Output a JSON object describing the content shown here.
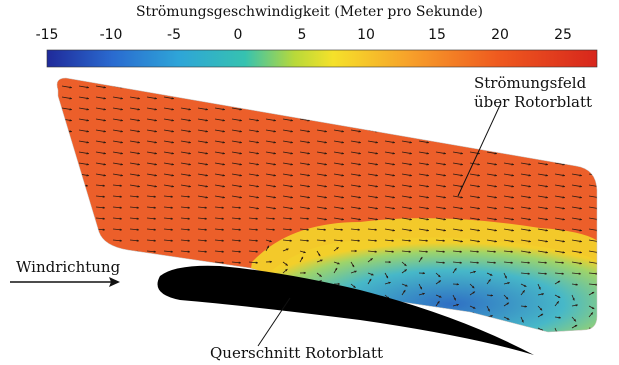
{
  "colorbar": {
    "title": "Strömungsgeschwindigkeit (Meter pro Sekunde)",
    "ticks": [
      "-15",
      "-10",
      "-5",
      "0",
      "5",
      "10",
      "15",
      "20",
      "25"
    ],
    "range": [
      -15,
      27
    ],
    "colors": [
      "#1f2a9a",
      "#2a6bd0",
      "#2ea5d8",
      "#36c2b0",
      "#b8d93a",
      "#f5e12a",
      "#f7a02a",
      "#ef5a1f",
      "#d7261c"
    ]
  },
  "labels": {
    "field": "Strömungsfeld über Rotorblatt",
    "wind": "Windrichtung",
    "cross_section": "Querschnitt Rotorblatt"
  },
  "field_colors": {
    "main": "#ec5f2a",
    "boundary": "#f3cf2a",
    "wake_mid": "#47b8c8",
    "wake_dark": "#2f6fc4",
    "blade": "#000000",
    "arrows": "#2b1a12"
  }
}
